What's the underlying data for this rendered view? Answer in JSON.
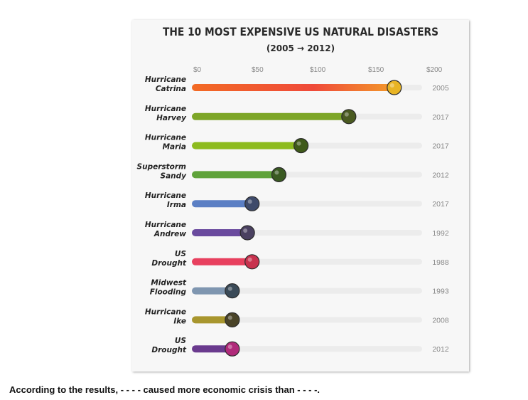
{
  "chart_data": {
    "type": "bar",
    "title": "THE 10 MOST EXPENSIVE US NATURAL DISASTERS",
    "subtitle": "(2005 → 2012)",
    "xlim": [
      0,
      200
    ],
    "x_ticks": [
      "$0",
      "$50",
      "$100",
      "$150",
      "$200"
    ],
    "x_tick_values": [
      0,
      50,
      100,
      150,
      200
    ],
    "grid": false,
    "categories": [
      [
        "Hurricane",
        "Catrina"
      ],
      [
        "Hurricane",
        "Harvey"
      ],
      [
        "Hurricane",
        "Maria"
      ],
      [
        "Superstorm",
        "Sandy"
      ],
      [
        "Hurricane",
        "Irma"
      ],
      [
        "Hurricane",
        "Andrew"
      ],
      [
        "US",
        "Drought"
      ],
      [
        "Midwest",
        "Flooding"
      ],
      [
        "Hurricane",
        "Ike"
      ],
      [
        "US",
        "Drought"
      ]
    ],
    "values": [
      170,
      131,
      90,
      71,
      48,
      44,
      48,
      31,
      31,
      31
    ],
    "years": [
      "2005",
      "2017",
      "2017",
      "2012",
      "2017",
      "1992",
      "1988",
      "1993",
      "2008",
      "2012"
    ],
    "colors": [
      "#f05a28",
      "#7da628",
      "#8dbb1e",
      "#5fa33a",
      "#5b7fc4",
      "#6a4a9e",
      "#e8405e",
      "#7f96b0",
      "#a8962e",
      "#6a3a8e"
    ],
    "dot_colors": [
      "#e8b424",
      "#4a5a20",
      "#3f5a1a",
      "#3a5a22",
      "#3e4a6a",
      "#4a4060",
      "#c8324e",
      "#3a4a58",
      "#4a4428",
      "#b02a7a"
    ]
  },
  "question": "According to the results, - - - - caused more economic crisis than - - - -."
}
